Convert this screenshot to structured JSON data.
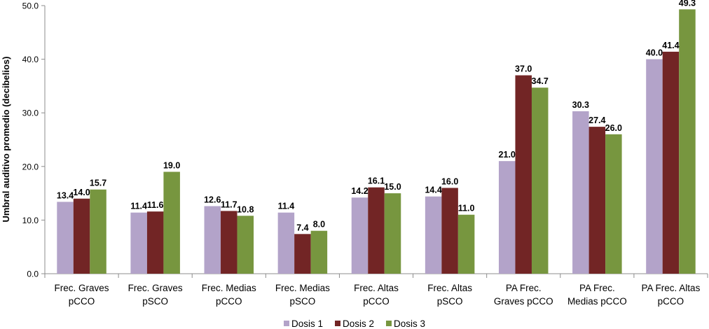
{
  "chart_data": {
    "type": "bar",
    "title": "",
    "xlabel": "",
    "ylabel": "Umbral auditivo promedio (decibelios)",
    "ylim": [
      0,
      50
    ],
    "yticks": [
      "0.0",
      "10.0",
      "20.0",
      "30.0",
      "40.0",
      "50.0"
    ],
    "grid": false,
    "legend_position": "bottom",
    "categories": [
      [
        "Frec. Graves",
        "pCCO"
      ],
      [
        "Frec. Graves",
        "pSCO"
      ],
      [
        "Frec. Medias",
        "pCCO"
      ],
      [
        "Frec. Medias",
        "pSCO"
      ],
      [
        "Frec. Altas",
        "pCCO"
      ],
      [
        "Frec. Altas",
        "pSCO"
      ],
      [
        "PA Frec.",
        "Graves pCCO"
      ],
      [
        "PA Frec.",
        "Medias pCCO"
      ],
      [
        "PA Frec. Altas",
        "pCCO"
      ]
    ],
    "series": [
      {
        "name": "Dosis 1",
        "color": "#b3a3c9",
        "values": [
          13.4,
          11.4,
          12.6,
          11.4,
          14.2,
          14.4,
          21.0,
          30.3,
          40.0
        ]
      },
      {
        "name": "Dosis 2",
        "color": "#722525",
        "values": [
          14.0,
          11.6,
          11.7,
          7.4,
          16.1,
          16.0,
          37.0,
          27.4,
          41.4
        ]
      },
      {
        "name": "Dosis 3",
        "color": "#77963f",
        "values": [
          15.7,
          19.0,
          10.8,
          8.0,
          15.0,
          11.0,
          34.7,
          26.0,
          49.3
        ]
      }
    ]
  }
}
